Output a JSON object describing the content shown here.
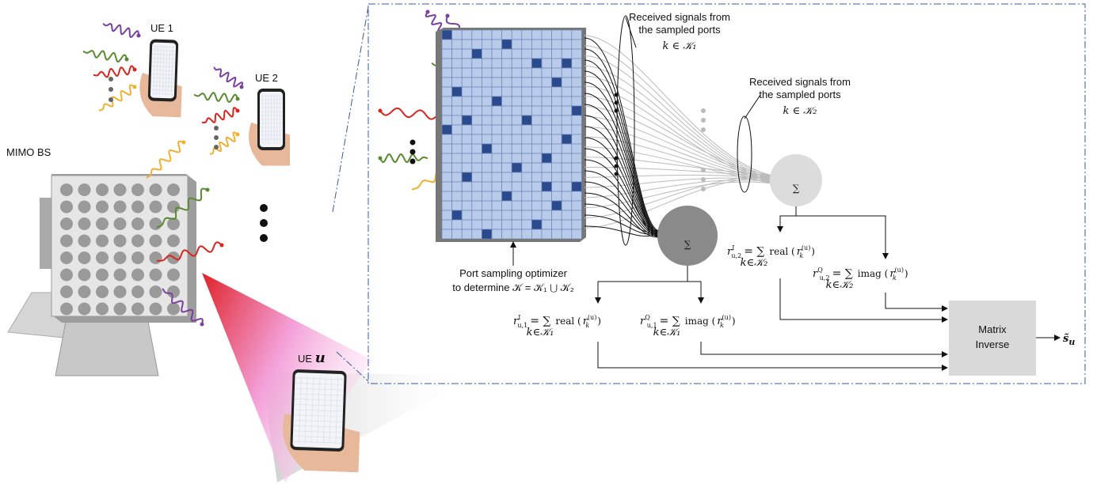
{
  "labels": {
    "ue1": "UE 1",
    "ue2": "UE 2",
    "bs": "MIMO BS",
    "ueu_prefix": "UE",
    "ueu_var": "u"
  },
  "annotations": {
    "k1": {
      "line1": "Received signals from",
      "line2": "the sampled ports",
      "math": "k ∈ 𝒦₁"
    },
    "k2": {
      "line1": "Received signals from",
      "line2": "the sampled ports",
      "math": "k ∈ 𝒦₂"
    },
    "optimizer": {
      "line1": "Port sampling optimizer",
      "line2": "to determine 𝒦 = 𝒦₁ ⋃ 𝒦₂"
    }
  },
  "nodes": {
    "sum1": "∑",
    "sum2": "∑",
    "inverse": {
      "line1": "Matrix",
      "line2": "Inverse"
    },
    "output": {
      "main": "s̃",
      "sub": "u"
    }
  },
  "formulas": [
    {
      "lhs": "r",
      "lhs_sup": "I",
      "lhs_sub": "u,1",
      "op": "= ∑",
      "under": "k∈𝒦₁",
      "func": "real (",
      "arg": "r",
      "arg_sup": "(u)",
      "arg_sub": "k",
      "close": ")"
    },
    {
      "lhs": "r",
      "lhs_sup": "Q",
      "lhs_sub": "u,1",
      "op": "= ∑",
      "under": "k∈𝒦₁",
      "func": "imag (",
      "arg": "r",
      "arg_sup": "(u)",
      "arg_sub": "k",
      "close": ")"
    },
    {
      "lhs": "r",
      "lhs_sup": "I",
      "lhs_sub": "u,2",
      "op": "= ∑",
      "under": "k∈𝒦₂",
      "func": "real (",
      "arg": "r",
      "arg_sup": "(u)",
      "arg_sub": "k",
      "close": ")"
    },
    {
      "lhs": "r",
      "lhs_sup": "Q",
      "lhs_sub": "u,2",
      "op": "= ∑",
      "under": "k∈𝒦₂",
      "func": "imag (",
      "arg": "r",
      "arg_sup": "(u)",
      "arg_sub": "k",
      "close": ")"
    }
  ]
}
